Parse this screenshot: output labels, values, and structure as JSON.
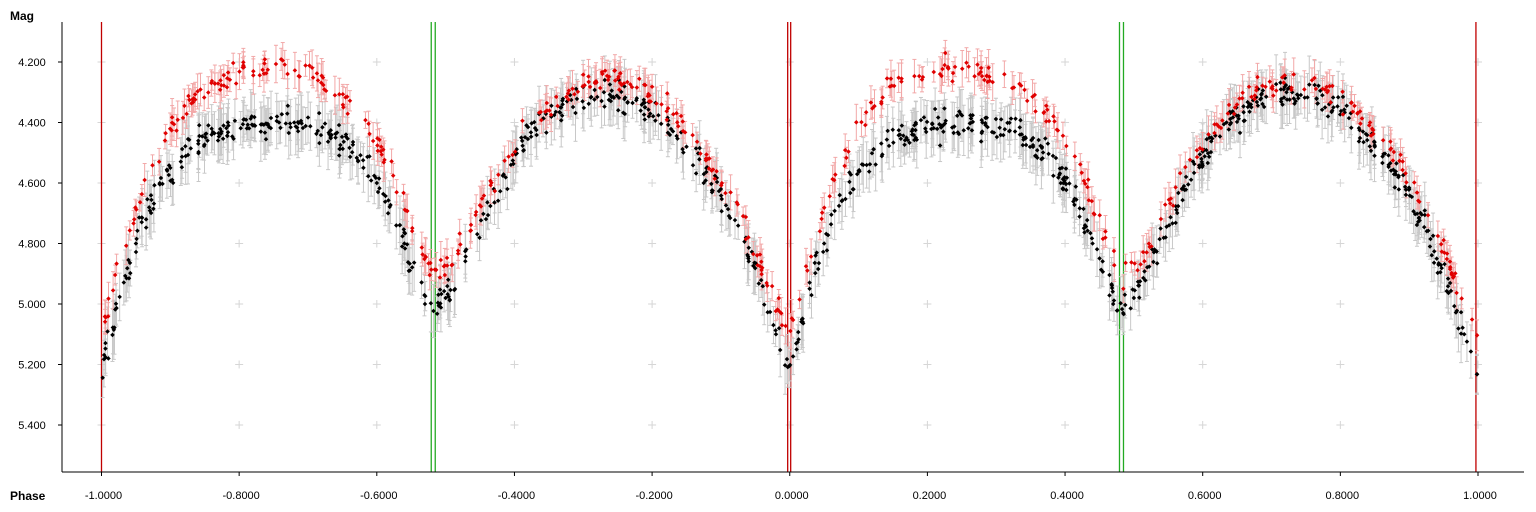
{
  "chart_data": {
    "type": "scatter",
    "title": "",
    "ylabel": "Mag",
    "xlabel": "Phase",
    "xlim": [
      -1.06,
      1.06
    ],
    "ylim": [
      5.56,
      4.08
    ],
    "y_inverted": true,
    "x_ticks": [
      "-1.0000",
      "-0.8000",
      "-0.6000",
      "-0.4000",
      "-0.2000",
      "0.0000",
      "0.2000",
      "0.4000",
      "0.6000",
      "0.8000",
      "1.0000"
    ],
    "x_tick_values": [
      -1.0,
      -0.8,
      -0.6,
      -0.4,
      -0.2,
      0.0,
      0.2,
      0.4,
      0.6,
      0.8,
      1.0
    ],
    "y_ticks": [
      "4.200",
      "4.400",
      "4.600",
      "4.800",
      "5.000",
      "5.200",
      "5.400"
    ],
    "y_tick_values": [
      4.2,
      4.4,
      4.6,
      4.8,
      5.0,
      5.2,
      5.4
    ],
    "grid": "plus-markers",
    "legend": "none",
    "phase_markers": [
      {
        "x": -1.0,
        "color": "#c00000"
      },
      {
        "x": -0.518,
        "color": "#22aa22"
      },
      {
        "x": -0.003,
        "color": "#c00000"
      },
      {
        "x": 0.482,
        "color": "#22aa22"
      },
      {
        "x": 0.997,
        "color": "#c00000"
      }
    ],
    "series": [
      {
        "color": "#e00000",
        "errorbar_color": "#f2a8a8",
        "typical_error": 0.045,
        "curve_knots": [
          [
            -1.0,
            5.1
          ],
          [
            -0.97,
            4.84
          ],
          [
            -0.94,
            4.62
          ],
          [
            -0.9,
            4.42
          ],
          [
            -0.86,
            4.3
          ],
          [
            -0.8,
            4.23
          ],
          [
            -0.74,
            4.22
          ],
          [
            -0.68,
            4.26
          ],
          [
            -0.62,
            4.38
          ],
          [
            -0.58,
            4.55
          ],
          [
            -0.55,
            4.74
          ],
          [
            -0.52,
            4.9
          ],
          [
            -0.49,
            4.86
          ],
          [
            -0.46,
            4.72
          ],
          [
            -0.42,
            4.55
          ],
          [
            -0.38,
            4.4
          ],
          [
            -0.32,
            4.29
          ],
          [
            -0.26,
            4.25
          ],
          [
            -0.2,
            4.31
          ],
          [
            -0.14,
            4.45
          ],
          [
            -0.08,
            4.66
          ],
          [
            -0.04,
            4.88
          ],
          [
            -0.01,
            5.06
          ],
          [
            0.0,
            5.1
          ],
          [
            0.03,
            4.84
          ],
          [
            0.06,
            4.62
          ],
          [
            0.1,
            4.42
          ],
          [
            0.14,
            4.3
          ],
          [
            0.2,
            4.23
          ],
          [
            0.26,
            4.22
          ],
          [
            0.32,
            4.26
          ],
          [
            0.38,
            4.38
          ],
          [
            0.42,
            4.55
          ],
          [
            0.45,
            4.74
          ],
          [
            0.48,
            4.9
          ],
          [
            0.51,
            4.86
          ],
          [
            0.54,
            4.72
          ],
          [
            0.58,
            4.55
          ],
          [
            0.62,
            4.4
          ],
          [
            0.68,
            4.29
          ],
          [
            0.74,
            4.25
          ],
          [
            0.8,
            4.31
          ],
          [
            0.86,
            4.45
          ],
          [
            0.92,
            4.66
          ],
          [
            0.96,
            4.88
          ],
          [
            0.99,
            5.06
          ],
          [
            1.0,
            5.1
          ]
        ]
      },
      {
        "color": "#000000",
        "errorbar_color": "#c8c8c8",
        "typical_error": 0.07,
        "curve_knots": [
          [
            -1.0,
            5.22
          ],
          [
            -0.97,
            4.95
          ],
          [
            -0.94,
            4.72
          ],
          [
            -0.9,
            4.56
          ],
          [
            -0.86,
            4.46
          ],
          [
            -0.8,
            4.41
          ],
          [
            -0.74,
            4.4
          ],
          [
            -0.68,
            4.42
          ],
          [
            -0.62,
            4.52
          ],
          [
            -0.58,
            4.68
          ],
          [
            -0.55,
            4.86
          ],
          [
            -0.52,
            5.02
          ],
          [
            -0.49,
            4.94
          ],
          [
            -0.46,
            4.78
          ],
          [
            -0.42,
            4.6
          ],
          [
            -0.38,
            4.44
          ],
          [
            -0.32,
            4.33
          ],
          [
            -0.26,
            4.3
          ],
          [
            -0.2,
            4.36
          ],
          [
            -0.14,
            4.5
          ],
          [
            -0.08,
            4.72
          ],
          [
            -0.04,
            4.96
          ],
          [
            -0.01,
            5.16
          ],
          [
            0.0,
            5.22
          ],
          [
            0.03,
            4.95
          ],
          [
            0.06,
            4.72
          ],
          [
            0.1,
            4.56
          ],
          [
            0.14,
            4.46
          ],
          [
            0.2,
            4.41
          ],
          [
            0.26,
            4.4
          ],
          [
            0.32,
            4.42
          ],
          [
            0.38,
            4.52
          ],
          [
            0.42,
            4.68
          ],
          [
            0.45,
            4.86
          ],
          [
            0.48,
            5.02
          ],
          [
            0.51,
            4.94
          ],
          [
            0.54,
            4.78
          ],
          [
            0.58,
            4.6
          ],
          [
            0.62,
            4.44
          ],
          [
            0.68,
            4.33
          ],
          [
            0.74,
            4.3
          ],
          [
            0.8,
            4.36
          ],
          [
            0.86,
            4.5
          ],
          [
            0.92,
            4.72
          ],
          [
            0.96,
            4.96
          ],
          [
            0.99,
            5.16
          ],
          [
            1.0,
            5.22
          ]
        ],
        "sampled_points": [
          [
            -0.99,
            5.18
          ],
          [
            -0.95,
            4.8
          ],
          [
            -0.9,
            4.55
          ],
          [
            -0.84,
            4.44
          ],
          [
            -0.78,
            4.41
          ],
          [
            -0.72,
            4.4
          ],
          [
            -0.66,
            4.45
          ],
          [
            -0.6,
            4.6
          ],
          [
            -0.56,
            4.8
          ],
          [
            -0.53,
            5.0
          ],
          [
            -0.5,
            4.98
          ],
          [
            -0.47,
            4.82
          ],
          [
            -0.43,
            4.62
          ],
          [
            -0.39,
            4.45
          ],
          [
            -0.33,
            4.34
          ],
          [
            -0.27,
            4.3
          ],
          [
            -0.21,
            4.35
          ],
          [
            -0.15,
            4.48
          ],
          [
            -0.1,
            4.62
          ],
          [
            -0.06,
            4.85
          ],
          [
            -0.02,
            5.1
          ],
          [
            0.01,
            5.15
          ],
          [
            0.05,
            4.8
          ],
          [
            0.1,
            4.56
          ],
          [
            0.16,
            4.44
          ],
          [
            0.22,
            4.41
          ],
          [
            0.28,
            4.4
          ],
          [
            0.34,
            4.45
          ],
          [
            0.4,
            4.6
          ],
          [
            0.44,
            4.8
          ],
          [
            0.47,
            5.0
          ],
          [
            0.5,
            4.98
          ],
          [
            0.53,
            4.82
          ],
          [
            0.57,
            4.62
          ],
          [
            0.61,
            4.45
          ],
          [
            0.67,
            4.34
          ],
          [
            0.73,
            4.3
          ],
          [
            0.79,
            4.35
          ],
          [
            0.85,
            4.48
          ],
          [
            0.9,
            4.62
          ],
          [
            0.94,
            4.85
          ],
          [
            0.98,
            5.1
          ]
        ]
      }
    ]
  }
}
